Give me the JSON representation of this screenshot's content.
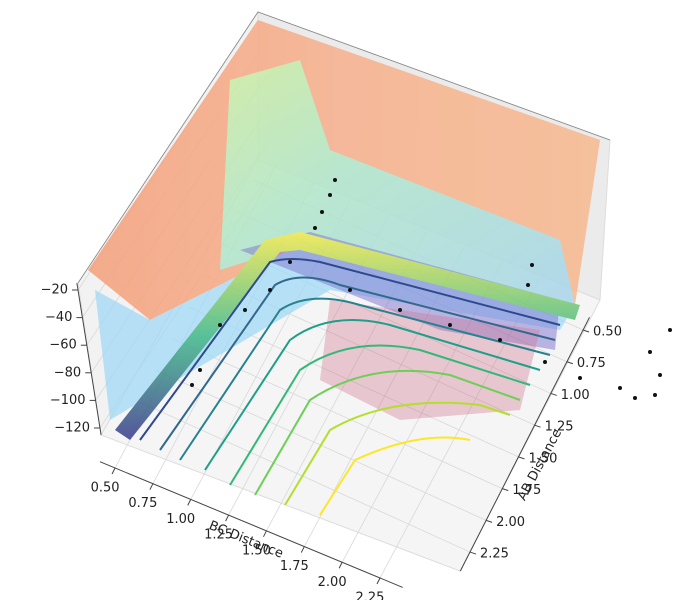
{
  "chart_data": {
    "type": "surface3d",
    "xlabel": "AB Distance",
    "ylabel": "BC Distance",
    "xlim": [
      0.4,
      2.4
    ],
    "ylim": [
      0.4,
      2.4
    ],
    "zlim": [
      -125,
      -15
    ],
    "xticks": [
      {
        "value": 0.5,
        "label": "0.50"
      },
      {
        "value": 0.75,
        "label": "0.75"
      },
      {
        "value": 1.0,
        "label": "1.00"
      },
      {
        "value": 1.25,
        "label": "1.25"
      },
      {
        "value": 1.5,
        "label": "1.50"
      },
      {
        "value": 1.75,
        "label": "1.75"
      },
      {
        "value": 2.0,
        "label": "2.00"
      },
      {
        "value": 2.25,
        "label": "2.25"
      }
    ],
    "yticks": [
      {
        "value": 0.5,
        "label": "0.50"
      },
      {
        "value": 0.75,
        "label": "0.75"
      },
      {
        "value": 1.0,
        "label": "1.00"
      },
      {
        "value": 1.25,
        "label": "1.25"
      },
      {
        "value": 1.5,
        "label": "1.50"
      },
      {
        "value": 1.75,
        "label": "1.75"
      },
      {
        "value": 2.0,
        "label": "2.00"
      },
      {
        "value": 2.25,
        "label": "2.25"
      }
    ],
    "zticks": [
      -20,
      -40,
      -60,
      -80,
      -100,
      -120
    ],
    "grid": true
  }
}
